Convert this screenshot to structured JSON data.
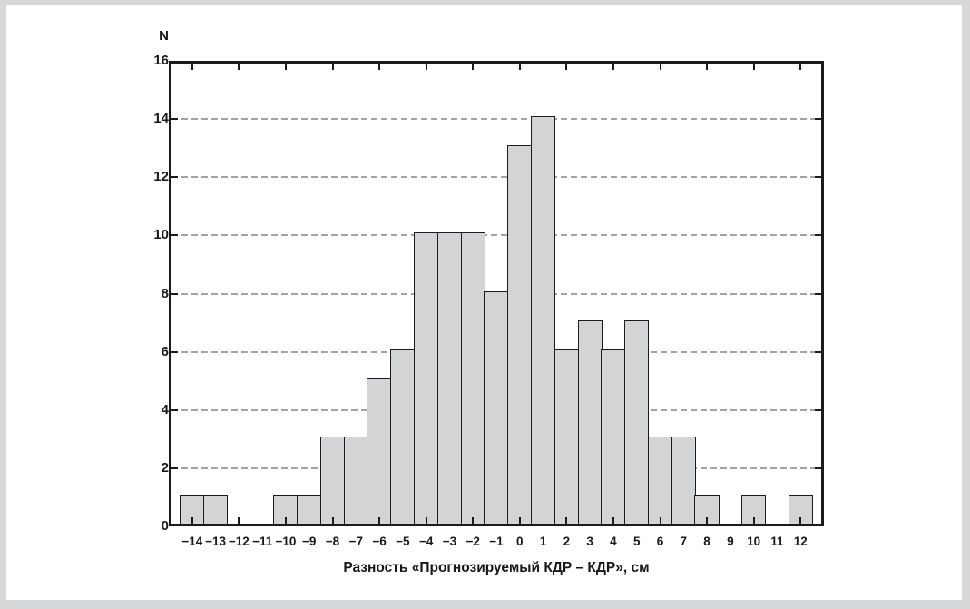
{
  "frame": {
    "background": "#ffffff",
    "border_color": "#d7d8da"
  },
  "chart_data": {
    "type": "bar",
    "subtype": "histogram",
    "title": "",
    "xlabel": "Разность «Прогнозируемый КДР – КДР», см",
    "ylabel": "N",
    "categories": [
      -14,
      -13,
      -12,
      -11,
      -10,
      -9,
      -8,
      -7,
      -6,
      -5,
      -4,
      -3,
      -2,
      -1,
      0,
      1,
      2,
      3,
      4,
      5,
      6,
      7,
      8,
      9,
      10,
      11,
      12
    ],
    "values": [
      1,
      1,
      0,
      0,
      1,
      1,
      3,
      3,
      5,
      6,
      10,
      10,
      10,
      8,
      13,
      14,
      6,
      7,
      6,
      7,
      3,
      3,
      1,
      0,
      1,
      0,
      1
    ],
    "xtick_labels": [
      "−14",
      "−13",
      "−12",
      "−11",
      "−10",
      "−9",
      "−8",
      "−7",
      "−6",
      "−5",
      "−4",
      "−3",
      "−2",
      "−1",
      "0",
      "1",
      "2",
      "3",
      "4",
      "5",
      "6",
      "7",
      "8",
      "9",
      "10",
      "11",
      "12"
    ],
    "ytick_labels": [
      "0",
      "2",
      "4",
      "6",
      "8",
      "10",
      "12",
      "14",
      "16"
    ],
    "ylim": [
      0,
      16
    ],
    "ytick_step": 2,
    "xlim": [
      -15,
      13
    ],
    "grid": "horizontal-dashed",
    "legend": "none",
    "bar_width": 1,
    "colors": {
      "bar_fill": "#d3d4d6",
      "bar_border": "#1b1b1f",
      "axis": "#1b1b1f",
      "grid_line": "#a3a3a3",
      "text": "#17171c"
    }
  }
}
